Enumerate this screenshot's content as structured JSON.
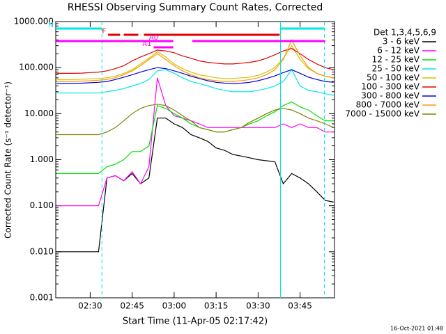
{
  "chart_data": {
    "type": "line",
    "title": "RHESSI Observing Summary Count Rates, Corrected",
    "x_label": "Start Time (11-Apr-05 02:17:42)",
    "y_label": "Corrected Count Rate (s⁻¹ detector⁻¹)",
    "footer": "16-Oct-2021 01:48",
    "legend_title": "Det 1,3,4,5,6,9",
    "log_y": true,
    "xlim": [
      137.7,
      237.3
    ],
    "ylim": [
      0.001,
      1000
    ],
    "xticks": [
      {
        "value": 150,
        "label": "02:30"
      },
      {
        "value": 165,
        "label": "02:45"
      },
      {
        "value": 180,
        "label": "03:00"
      },
      {
        "value": 195,
        "label": "03:15"
      },
      {
        "value": 210,
        "label": "03:30"
      },
      {
        "value": 225,
        "label": "03:45"
      }
    ],
    "yticks": [
      {
        "value": 0.001,
        "label": "0.001"
      },
      {
        "value": 0.01,
        "label": "0.010"
      },
      {
        "value": 0.1,
        "label": "0.100"
      },
      {
        "value": 1,
        "label": "1.000"
      },
      {
        "value": 10,
        "label": "10.000"
      },
      {
        "value": 100,
        "label": "100.000"
      },
      {
        "value": 1000,
        "label": "1000.000"
      }
    ],
    "x": [
      138,
      141,
      144,
      147,
      150,
      153,
      156,
      159,
      162,
      165,
      168,
      171,
      174,
      177,
      180,
      183,
      186,
      189,
      192,
      195,
      198,
      201,
      204,
      207,
      210,
      213,
      216,
      219,
      222,
      225,
      228,
      231,
      234,
      237
    ],
    "series": [
      {
        "name": "3 - 6 keV",
        "color": "#000000",
        "values": [
          0.01,
          0.01,
          0.01,
          0.01,
          0.01,
          0.01,
          0.4,
          0.45,
          0.35,
          0.5,
          0.3,
          0.4,
          8,
          8,
          6,
          5,
          3.5,
          3,
          2.5,
          1.8,
          1.6,
          1.3,
          1.2,
          1.1,
          1.0,
          0.95,
          0.9,
          0.3,
          0.5,
          0.4,
          0.3,
          0.2,
          0.13,
          0.12
        ]
      },
      {
        "name": "6 - 12 keV",
        "color": "#ff00ff",
        "values": [
          0.1,
          0.1,
          0.1,
          0.1,
          0.1,
          0.1,
          0.4,
          0.45,
          0.35,
          0.55,
          0.3,
          0.7,
          60,
          15,
          9,
          8,
          7,
          6,
          5,
          5,
          5,
          5,
          5,
          5,
          5,
          5,
          5,
          6,
          5,
          6,
          5,
          5,
          4,
          4
        ]
      },
      {
        "name": "12 - 25 keV",
        "color": "#00e000",
        "values": [
          0.5,
          0.5,
          0.5,
          0.5,
          0.5,
          0.5,
          0.7,
          0.8,
          1,
          1.5,
          1.5,
          2,
          15,
          13,
          10,
          8,
          6,
          5,
          4.5,
          4,
          4,
          4.5,
          5,
          6,
          7,
          9,
          11,
          15,
          18,
          14,
          12,
          9,
          7,
          7
        ]
      },
      {
        "name": "25 - 50 keV",
        "color": "#00e5e5",
        "values": [
          28,
          28,
          28,
          28,
          28,
          28,
          30,
          32,
          35,
          40,
          45,
          55,
          85,
          90,
          75,
          60,
          50,
          45,
          40,
          35,
          32,
          30,
          30,
          30,
          32,
          35,
          40,
          50,
          90,
          40,
          32,
          30,
          27,
          25
        ]
      },
      {
        "name": "50 - 100 keV",
        "color": "#d8c000",
        "values": [
          55,
          55,
          55,
          56,
          57,
          58,
          60,
          65,
          75,
          90,
          120,
          160,
          220,
          170,
          120,
          95,
          80,
          70,
          65,
          60,
          58,
          58,
          60,
          62,
          68,
          80,
          100,
          160,
          300,
          150,
          95,
          75,
          65,
          60
        ]
      },
      {
        "name": "100 - 300 keV",
        "color": "#e00000",
        "values": [
          75,
          75,
          75,
          76,
          78,
          80,
          85,
          95,
          110,
          140,
          170,
          200,
          240,
          230,
          210,
          180,
          160,
          140,
          130,
          125,
          120,
          120,
          125,
          130,
          140,
          160,
          190,
          230,
          260,
          200,
          150,
          120,
          100,
          90
        ]
      },
      {
        "name": "300 - 800 keV",
        "color": "#0000e0",
        "values": [
          45,
          45,
          45,
          46,
          47,
          48,
          50,
          55,
          62,
          70,
          80,
          90,
          100,
          95,
          85,
          75,
          65,
          58,
          52,
          48,
          46,
          45,
          46,
          48,
          52,
          58,
          66,
          78,
          90,
          75,
          62,
          55,
          50,
          48
        ]
      },
      {
        "name": "800 - 7000 keV",
        "color": "#ff9900",
        "values": [
          50,
          50,
          50,
          51,
          52,
          53,
          55,
          60,
          70,
          85,
          110,
          150,
          200,
          150,
          110,
          85,
          70,
          60,
          55,
          52,
          50,
          50,
          52,
          55,
          60,
          70,
          90,
          150,
          400,
          180,
          100,
          75,
          65,
          60
        ]
      },
      {
        "name": "7000 - 15000 keV",
        "color": "#808000",
        "values": [
          3.5,
          3.5,
          3.5,
          3.5,
          3.5,
          3.5,
          4,
          5,
          7,
          10,
          13,
          15,
          16,
          15,
          12,
          9,
          7,
          5,
          4.5,
          4,
          4,
          4.5,
          5,
          6.5,
          8,
          10,
          12,
          13,
          12,
          10,
          8,
          7,
          6,
          5
        ]
      }
    ],
    "flags": [
      {
        "label": "N",
        "color": "#00e5e5",
        "segments": [
          [
            137.7,
            154.2
          ],
          [
            218,
            233.7
          ]
        ]
      },
      {
        "label": "F",
        "color": "#e00000",
        "segments": [
          [
            156.4,
            160.7
          ],
          [
            162,
            167.2
          ],
          [
            169.2,
            217.7
          ]
        ]
      },
      {
        "label": "A0",
        "color": "#ff00ff",
        "segments": [
          [
            137.7,
            179.7
          ],
          [
            186.5,
            234
          ]
        ]
      },
      {
        "label": "A1",
        "color": "#ff00ff",
        "segments": [
          [
            172.7,
            179.7
          ]
        ]
      }
    ],
    "vlines": [
      {
        "x": 154.2,
        "dashed": true
      },
      {
        "x": 218,
        "dashed": false
      },
      {
        "x": 233.7,
        "dashed": true
      }
    ]
  }
}
